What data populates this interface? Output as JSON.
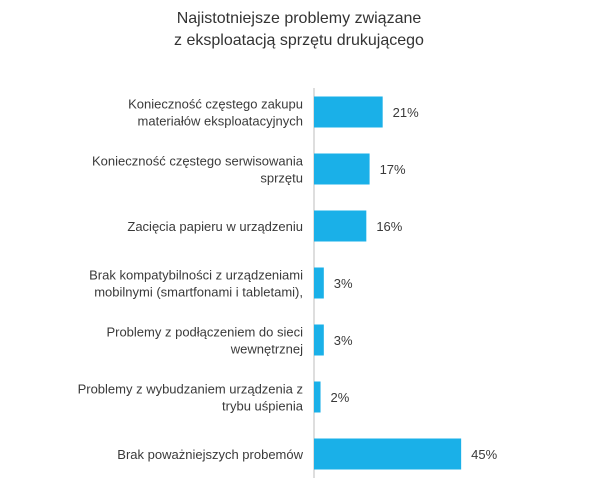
{
  "chart_data": {
    "type": "bar",
    "orientation": "horizontal",
    "title_lines": [
      "Najistotniejsze problemy związane",
      "z eksploatacją sprzętu drukującego"
    ],
    "categories": [
      [
        "Konieczność częstego zakupu",
        "materiałów eksploatacyjnych"
      ],
      [
        "Konieczność częstego serwisowania",
        "sprzętu"
      ],
      [
        "Zacięcia papieru w urządzeniu"
      ],
      [
        "Brak kompatybilności z urządzeniami",
        "mobilnymi (smartfonami i tabletami),"
      ],
      [
        "Problemy z podłączeniem do sieci",
        "wewnętrznej"
      ],
      [
        "Problemy z wybudzaniem urządzenia z",
        "trybu uśpienia"
      ],
      [
        "Brak poważniejszych probemów"
      ]
    ],
    "values": [
      21,
      17,
      16,
      3,
      3,
      2,
      45
    ],
    "value_labels": [
      "21%",
      "17%",
      "16%",
      "3%",
      "3%",
      "2%",
      "45%"
    ],
    "unit": "%",
    "bar_color": "#1ab0e8",
    "axis_line": true,
    "grid": false,
    "legend": "none"
  }
}
